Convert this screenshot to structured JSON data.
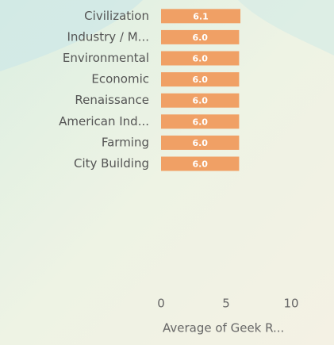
{
  "chart_data": {
    "type": "bar",
    "orientation": "horizontal",
    "categories": [
      "Civilization",
      "Industry / M...",
      "Environmental",
      "Economic",
      "Renaissance",
      "American Ind...",
      "Farming",
      "City Building"
    ],
    "values": [
      6.1,
      6.0,
      6.0,
      6.0,
      6.0,
      6.0,
      6.0,
      6.0
    ],
    "value_labels": [
      "6.1",
      "6.0",
      "6.0",
      "6.0",
      "6.0",
      "6.0",
      "6.0",
      "6.0"
    ],
    "color": "#f0a065",
    "xlim": [
      0,
      10
    ],
    "xticks": [
      0,
      5,
      10
    ],
    "x_label": "Average of Geek R..."
  }
}
